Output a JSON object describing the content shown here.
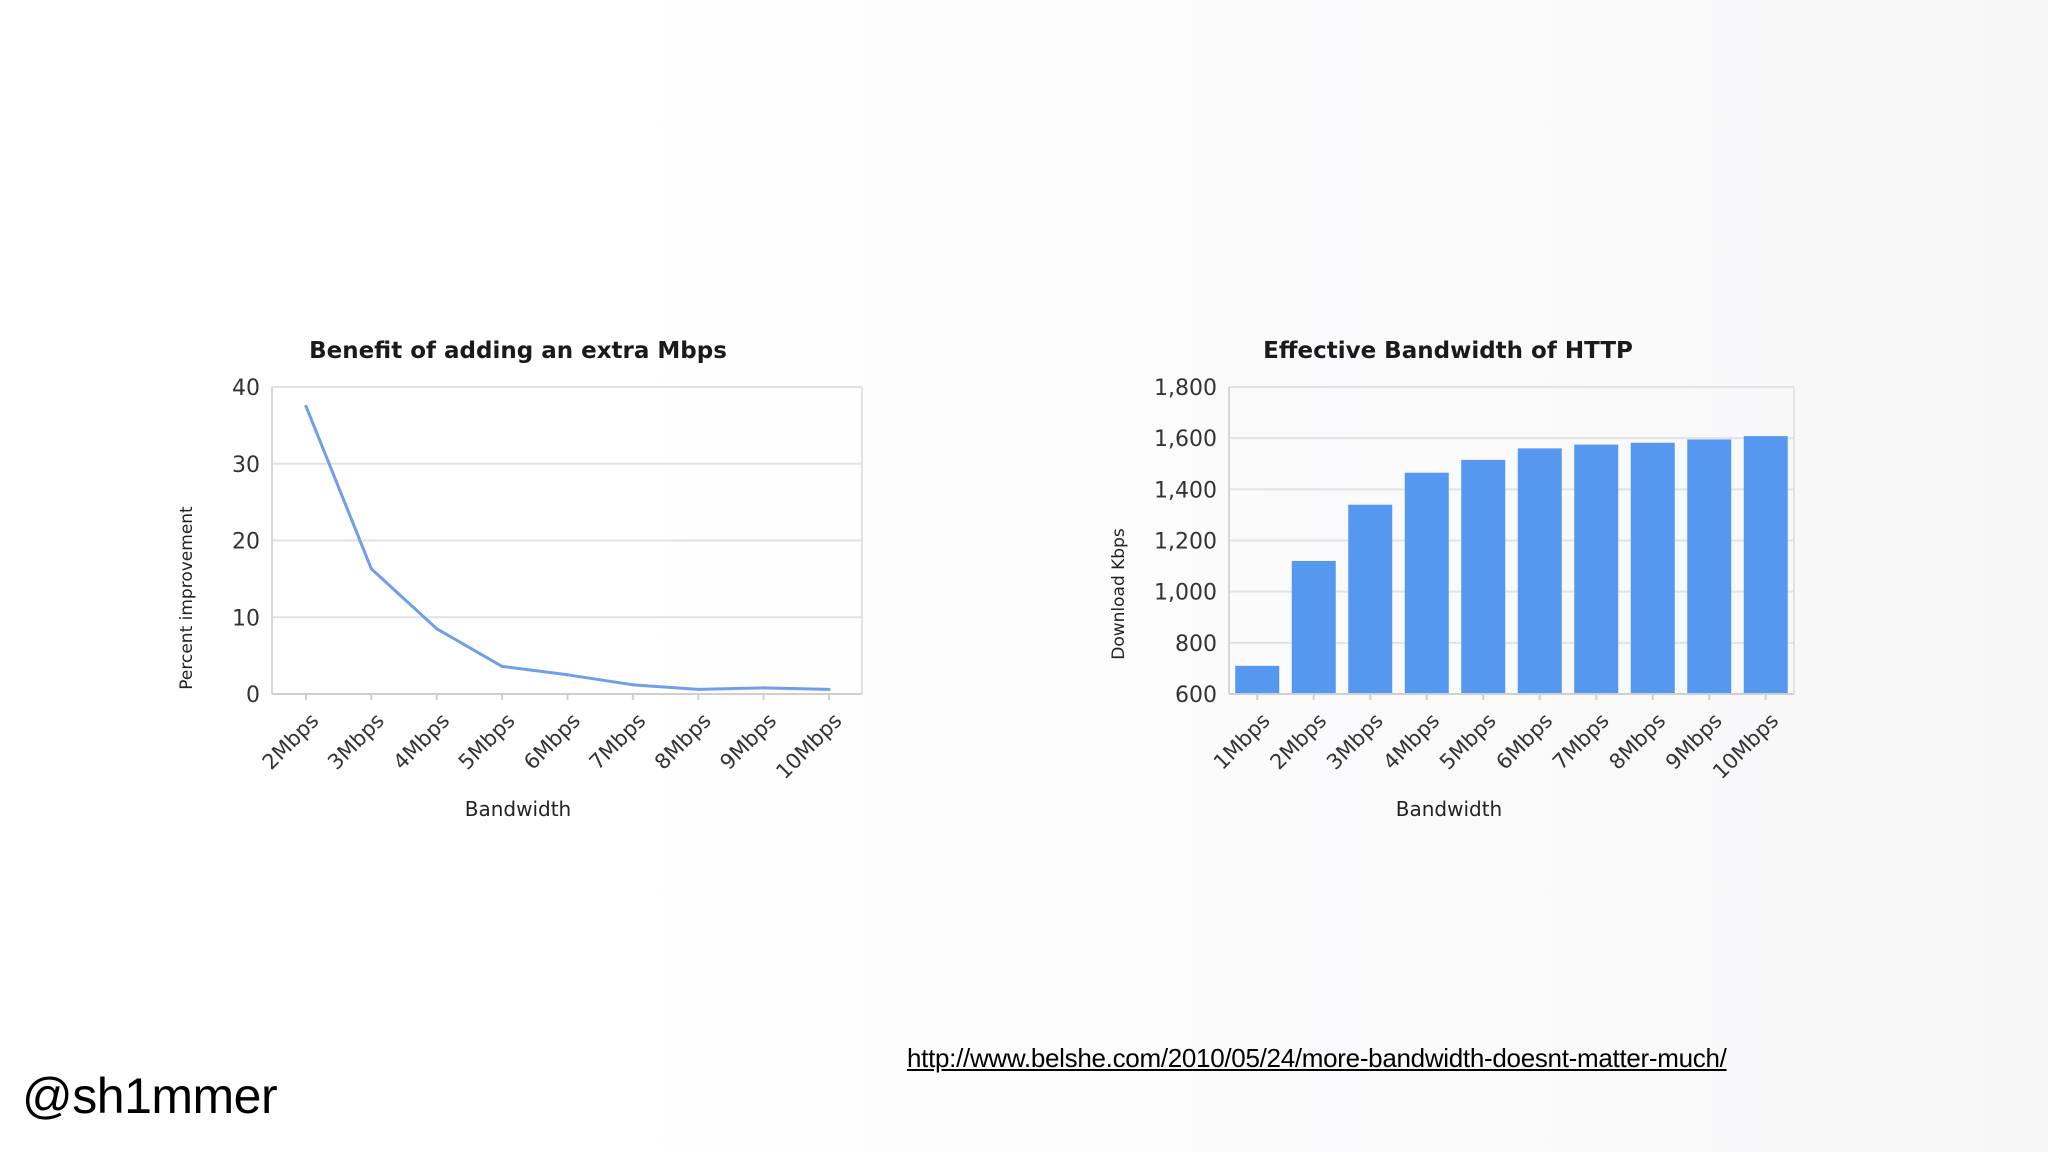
{
  "chart_data": [
    {
      "type": "line",
      "title": "Benefit of adding an extra Mbps",
      "xlabel": "Bandwidth",
      "ylabel": "Percent improvement",
      "categories": [
        "2Mbps",
        "3Mbps",
        "4Mbps",
        "5Mbps",
        "6Mbps",
        "7Mbps",
        "8Mbps",
        "9Mbps",
        "10Mbps"
      ],
      "series": [
        {
          "values": [
            37.5,
            16.3,
            8.5,
            3.6,
            2.5,
            1.2,
            0.6,
            0.8,
            0.6
          ]
        }
      ],
      "ylim": [
        0,
        40
      ],
      "yticks": [
        0,
        10,
        20,
        30,
        40
      ],
      "grid": true,
      "color": "#6f9fe8"
    },
    {
      "type": "bar",
      "title": "Effective Bandwidth of HTTP",
      "xlabel": "Bandwidth",
      "ylabel": "Download Kbps",
      "categories": [
        "1Mbps",
        "2Mbps",
        "3Mbps",
        "4Mbps",
        "5Mbps",
        "6Mbps",
        "7Mbps",
        "8Mbps",
        "9Mbps",
        "10Mbps"
      ],
      "series": [
        {
          "values": [
            710,
            1120,
            1340,
            1465,
            1515,
            1560,
            1575,
            1582,
            1595,
            1608
          ]
        }
      ],
      "ylim": [
        600,
        1800
      ],
      "yticks": [
        600,
        800,
        1000,
        1200,
        1400,
        1600,
        1800
      ],
      "ytick_labels": [
        "600",
        "800",
        "1,000",
        "1,200",
        "1,400",
        "1,600",
        "1,800"
      ],
      "grid": true,
      "color": "#5698ef"
    }
  ],
  "footer": {
    "url": "http://www.belshe.com/2010/05/24/more-bandwidth-doesnt-matter-much/",
    "handle": "@sh1mmer"
  }
}
